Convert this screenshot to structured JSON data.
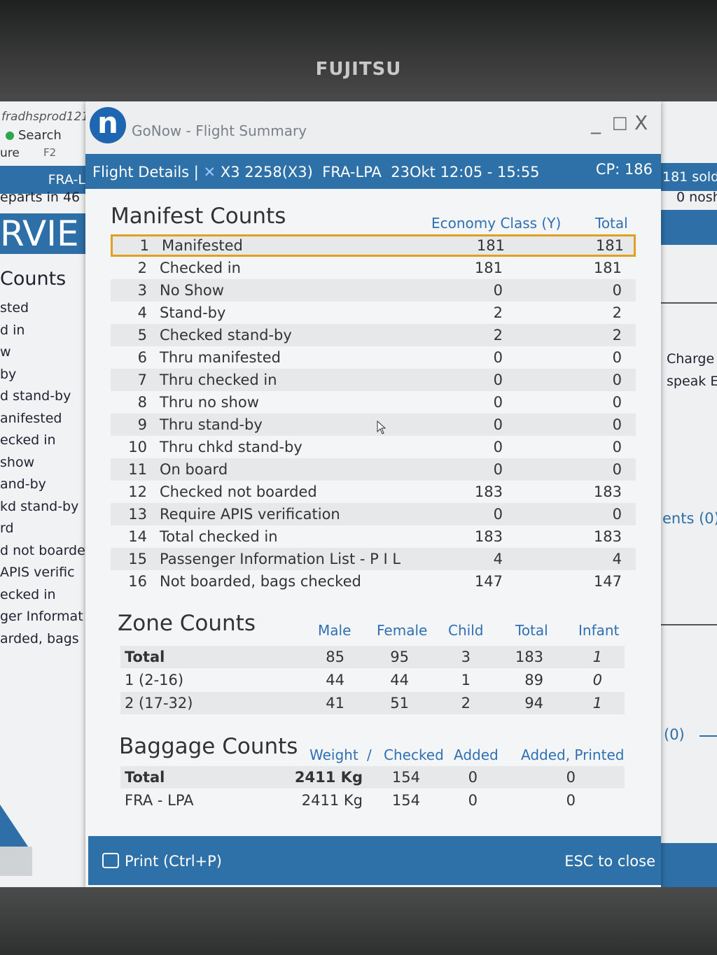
{
  "monitor": {
    "brand": "FUJITSU"
  },
  "background_app": {
    "user": "fradhsprod121,",
    "search_label": "Search",
    "ure": "ure",
    "f2": "F2",
    "route_bar": "FRA-L",
    "departs": "eparts in 46",
    "banner": "RVIE",
    "counts_title": "Counts",
    "list": [
      "sted",
      "d in",
      "w",
      "by",
      "d stand-by",
      "anifested",
      "ecked in",
      "show",
      "and-by",
      "kd stand-by",
      "rd",
      "d not boarde",
      "APIS verific",
      "ecked in",
      "ger Informat",
      "arded, bags"
    ],
    "right_sold": "181 sold",
    "right_nosh": "0 nosh",
    "right_charge": "Charge",
    "right_speak": "speak En",
    "right_ents": "ents (0)",
    "right_zero": "(0)"
  },
  "window": {
    "title": "GoNow - Flight Summary",
    "minimize": "_",
    "maximize": "□",
    "close": "X"
  },
  "flight": {
    "label": "Flight Details |",
    "flight_no": "X3 2258(X3)",
    "route": "FRA-LPA",
    "time": "23Okt 12:05 - 15:55",
    "cp": "CP: 186"
  },
  "manifest": {
    "title": "Manifest Counts",
    "col_economy": "Economy Class (Y)",
    "col_total": "Total",
    "rows": [
      {
        "n": "1",
        "label": "Manifested",
        "y": "181",
        "total": "181"
      },
      {
        "n": "2",
        "label": "Checked in",
        "y": "181",
        "total": "181"
      },
      {
        "n": "3",
        "label": "No Show",
        "y": "0",
        "total": "0"
      },
      {
        "n": "4",
        "label": "Stand-by",
        "y": "2",
        "total": "2"
      },
      {
        "n": "5",
        "label": "Checked stand-by",
        "y": "2",
        "total": "2"
      },
      {
        "n": "6",
        "label": "Thru manifested",
        "y": "0",
        "total": "0"
      },
      {
        "n": "7",
        "label": "Thru checked in",
        "y": "0",
        "total": "0"
      },
      {
        "n": "8",
        "label": "Thru no show",
        "y": "0",
        "total": "0"
      },
      {
        "n": "9",
        "label": "Thru stand-by",
        "y": "0",
        "total": "0"
      },
      {
        "n": "10",
        "label": "Thru chkd stand-by",
        "y": "0",
        "total": "0"
      },
      {
        "n": "11",
        "label": "On board",
        "y": "0",
        "total": "0"
      },
      {
        "n": "12",
        "label": "Checked not boarded",
        "y": "183",
        "total": "183"
      },
      {
        "n": "13",
        "label": "Require APIS verification",
        "y": "0",
        "total": "0"
      },
      {
        "n": "14",
        "label": "Total checked in",
        "y": "183",
        "total": "183"
      },
      {
        "n": "15",
        "label": "Passenger Information List - P I L",
        "y": "4",
        "total": "4"
      },
      {
        "n": "16",
        "label": "Not boarded, bags checked",
        "y": "147",
        "total": "147"
      }
    ]
  },
  "zone": {
    "title": "Zone Counts",
    "cols": [
      "Male",
      "Female",
      "Child",
      "Total",
      "Infant"
    ],
    "rows": [
      {
        "label": "Total",
        "male": "85",
        "female": "95",
        "child": "3",
        "total": "183",
        "infant": "1"
      },
      {
        "label": "1 (2-16)",
        "male": "44",
        "female": "44",
        "child": "1",
        "total": "89",
        "infant": "0"
      },
      {
        "label": "2 (17-32)",
        "male": "41",
        "female": "51",
        "child": "2",
        "total": "94",
        "infant": "1"
      }
    ]
  },
  "baggage": {
    "title": "Baggage Counts",
    "col_weight": "Weight",
    "col_sep": "/",
    "col_checked": "Checked",
    "col_added": "Added",
    "col_added_printed": "Added, Printed",
    "rows": [
      {
        "label": "Total",
        "weight": "2411 Kg",
        "checked": "154",
        "added": "0",
        "printed": "0"
      },
      {
        "label": "FRA - LPA",
        "weight": "2411 Kg",
        "checked": "154",
        "added": "0",
        "printed": "0"
      }
    ]
  },
  "footer": {
    "print": "Print (Ctrl+P)",
    "close": "ESC to close"
  },
  "colors": {
    "accent": "#2e70a8",
    "highlight": "#e0a020",
    "header_text": "#2f6fb3"
  }
}
